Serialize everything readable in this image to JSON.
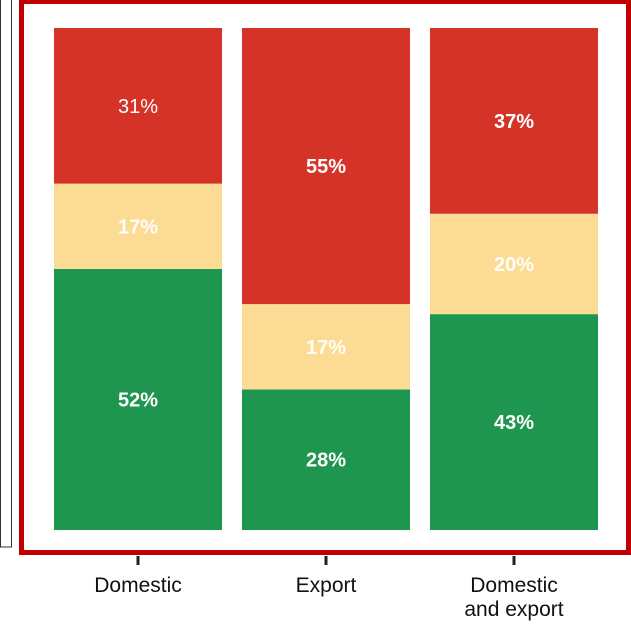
{
  "colors": {
    "frame": "#c00000",
    "left_panel_border": "#333333",
    "tick": "#222222"
  },
  "chart_data": {
    "type": "bar",
    "stacked": true,
    "normalized": true,
    "categories": [
      [
        "Domestic"
      ],
      [
        "Export"
      ],
      [
        "Domestic",
        "and export"
      ]
    ],
    "series": [
      {
        "values": [
          52,
          28,
          43
        ],
        "labels": [
          "52%",
          "28%",
          "43%"
        ],
        "color": "#1e9650",
        "label_color": "#ffffff"
      },
      {
        "values": [
          17,
          17,
          20
        ],
        "labels": [
          "17%",
          "17%",
          "20%"
        ],
        "color": "#fcdb94",
        "label_color": "#ffffff"
      },
      {
        "values": [
          31,
          55,
          37
        ],
        "labels": [
          "31%",
          "55%",
          "37%"
        ],
        "color": "#d63328",
        "label_color": "#ffffff"
      }
    ],
    "ylim": [
      0,
      100
    ],
    "grid": false,
    "legend": "none"
  }
}
